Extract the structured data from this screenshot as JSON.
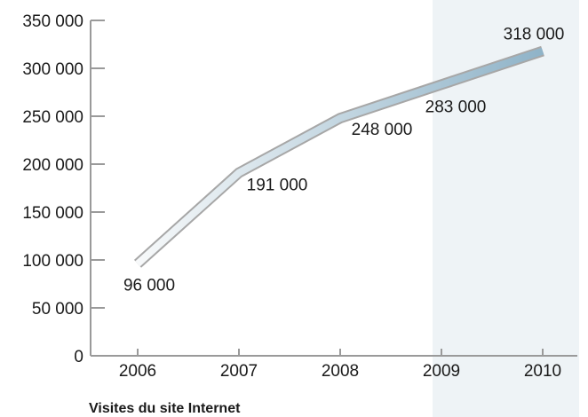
{
  "chart_data": {
    "type": "line",
    "title": "Visites du site Internet",
    "xlabel": "",
    "ylabel": "",
    "categories": [
      "2006",
      "2007",
      "2008",
      "2009",
      "2010"
    ],
    "series": [
      {
        "values": [
          96000,
          191000,
          248000,
          283000,
          318000
        ],
        "labels": [
          "96 000",
          "191 000",
          "248 000",
          "283 000",
          "318 000"
        ]
      }
    ],
    "ylim": [
      0,
      350000
    ],
    "yticks": [
      0,
      50000,
      100000,
      150000,
      200000,
      250000,
      300000,
      350000
    ],
    "ytick_labels": [
      "0",
      "50 000",
      "100 000",
      "150 000",
      "200 000",
      "250 000",
      "300 000",
      "350 000"
    ],
    "highlight_categories": [
      "2009",
      "2010"
    ],
    "legend": "none",
    "grid": false,
    "colors": {
      "highlight_band": "#eef3f6",
      "line_start": "#f7f9fa",
      "line_end": "#8fb3c8",
      "line_outline": "#a7a7a7",
      "axis": "#9a9a9a"
    }
  }
}
